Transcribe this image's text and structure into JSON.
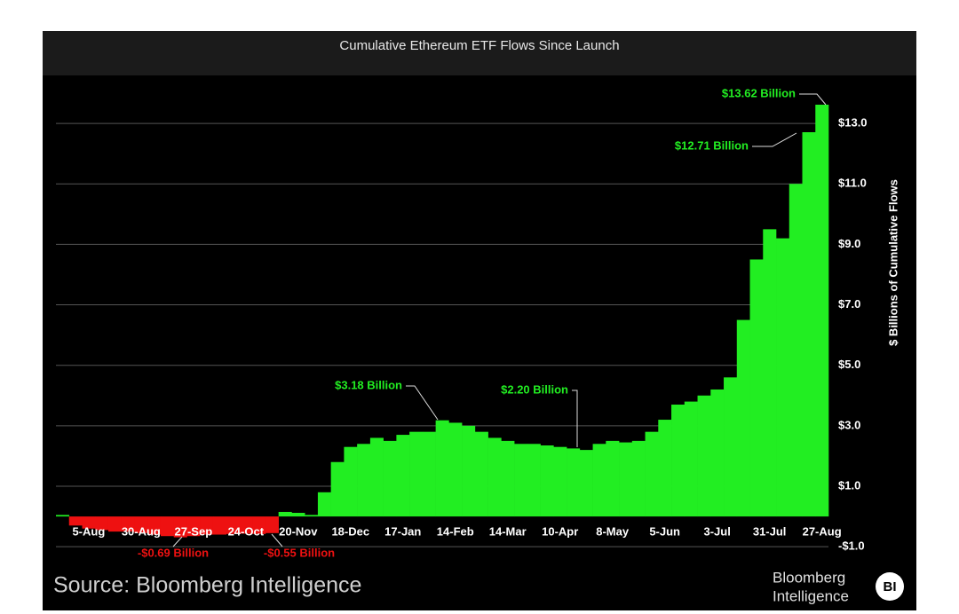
{
  "chart_data": {
    "type": "area",
    "title": "Cumulative Ethereum ETF Flows Since Launch",
    "y_label": "$ Billions of Cumulative Flows",
    "source": "Source: Bloomberg Intelligence",
    "logo": [
      "Bloomberg",
      "Intelligence",
      "BI"
    ],
    "categories": [
      null,
      null,
      "5-Aug",
      null,
      null,
      null,
      "30-Aug",
      null,
      null,
      null,
      "27-Sep",
      null,
      null,
      null,
      "24-Oct",
      null,
      null,
      null,
      "20-Nov",
      null,
      null,
      null,
      "18-Dec",
      null,
      null,
      null,
      "17-Jan",
      null,
      null,
      null,
      "14-Feb",
      null,
      null,
      null,
      "14-Mar",
      null,
      null,
      null,
      "10-Apr",
      null,
      null,
      null,
      "8-May",
      null,
      null,
      null,
      "5-Jun",
      null,
      null,
      null,
      "3-Jul",
      null,
      null,
      null,
      "31-Jul",
      null,
      null,
      null,
      "27-Aug"
    ],
    "values": [
      0.05,
      -0.3,
      -0.4,
      -0.45,
      -0.5,
      -0.5,
      -0.55,
      -0.6,
      -0.65,
      -0.69,
      -0.65,
      -0.6,
      -0.6,
      -0.58,
      -0.57,
      -0.58,
      -0.55,
      0.15,
      0.12,
      0.05,
      0.8,
      1.8,
      2.3,
      2.4,
      2.6,
      2.5,
      2.7,
      2.8,
      2.8,
      3.18,
      3.1,
      3.0,
      2.8,
      2.6,
      2.5,
      2.4,
      2.4,
      2.35,
      2.3,
      2.25,
      2.2,
      2.4,
      2.5,
      2.45,
      2.5,
      2.8,
      3.2,
      3.7,
      3.8,
      4.0,
      4.2,
      4.6,
      6.5,
      8.5,
      9.5,
      9.2,
      11.0,
      12.71,
      13.62
    ],
    "color": "#22ee22",
    "negative_color": "#ee1111",
    "annotations": [
      "$13.62 Billion",
      "$12.71 Billion",
      "$3.18 Billion",
      "$2.20 Billion",
      "-$0.69 Billion",
      "-$0.55 Billion"
    ],
    "ylim": [
      -1.7,
      14.5
    ],
    "yticks": [
      {
        "value": -1,
        "label": "-$1.0"
      },
      {
        "value": 1,
        "label": "$1.0"
      },
      {
        "value": 3,
        "label": "$3.0"
      },
      {
        "value": 5,
        "label": "$5.0"
      },
      {
        "value": 7,
        "label": "$7.0"
      },
      {
        "value": 9,
        "label": "$9.0"
      },
      {
        "value": 11,
        "label": "$11.0"
      },
      {
        "value": 13,
        "label": "$13.0"
      }
    ],
    "grid": true
  }
}
